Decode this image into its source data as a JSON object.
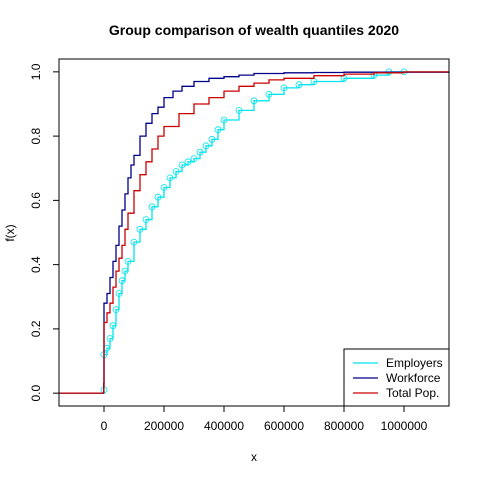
{
  "chart_data": {
    "type": "line",
    "title": "Group comparison of wealth quantiles 2020",
    "xlabel": "x",
    "ylabel": "f(x)",
    "xlim": [
      -150000,
      1150000
    ],
    "ylim": [
      -0.04,
      1.04
    ],
    "x_ticks": [
      0,
      200000,
      400000,
      600000,
      800000,
      1000000
    ],
    "x_tick_labels": [
      "0",
      "200000",
      "400000",
      "600000",
      "800000",
      "1000000"
    ],
    "y_ticks": [
      0.0,
      0.2,
      0.4,
      0.6,
      0.8,
      1.0
    ],
    "y_tick_labels": [
      "0.0",
      "0.2",
      "0.4",
      "0.6",
      "0.8",
      "1.0"
    ],
    "grid": false,
    "legend_position": "bottom-right",
    "series": [
      {
        "name": "Employers",
        "color": "#00e5ee",
        "marker": "circle",
        "x": [
          -150000,
          -1000,
          0,
          0,
          10000,
          20000,
          30000,
          40000,
          50000,
          60000,
          70000,
          80000,
          100000,
          120000,
          140000,
          160000,
          180000,
          200000,
          220000,
          240000,
          260000,
          280000,
          300000,
          320000,
          340000,
          360000,
          380000,
          400000,
          450000,
          500000,
          550000,
          600000,
          650000,
          700000,
          800000,
          900000,
          950000,
          1000000,
          1150000
        ],
        "y": [
          0.0,
          0.0,
          0.01,
          0.12,
          0.14,
          0.17,
          0.21,
          0.26,
          0.31,
          0.35,
          0.38,
          0.41,
          0.47,
          0.51,
          0.54,
          0.58,
          0.61,
          0.64,
          0.67,
          0.69,
          0.71,
          0.72,
          0.73,
          0.75,
          0.77,
          0.79,
          0.82,
          0.85,
          0.88,
          0.91,
          0.93,
          0.95,
          0.96,
          0.97,
          0.98,
          0.99,
          1.0,
          1.0,
          1.0
        ]
      },
      {
        "name": "Workforce",
        "color": "#00008b",
        "marker": "none",
        "x": [
          -150000,
          -10000,
          -1000,
          0,
          0,
          10000,
          20000,
          30000,
          40000,
          50000,
          60000,
          70000,
          80000,
          90000,
          100000,
          120000,
          140000,
          160000,
          180000,
          200000,
          230000,
          260000,
          300000,
          350000,
          400000,
          450000,
          500000,
          600000,
          700000,
          800000,
          1150000
        ],
        "y": [
          0.0,
          0.0,
          0.03,
          0.03,
          0.28,
          0.31,
          0.36,
          0.41,
          0.46,
          0.52,
          0.57,
          0.62,
          0.67,
          0.71,
          0.74,
          0.8,
          0.84,
          0.87,
          0.89,
          0.92,
          0.94,
          0.955,
          0.97,
          0.98,
          0.985,
          0.99,
          0.995,
          0.997,
          0.998,
          0.999,
          1.0
        ]
      },
      {
        "name": "Total Pop.",
        "color": "#cc0000",
        "marker": "none",
        "x": [
          -150000,
          -10000,
          -1000,
          0,
          0,
          10000,
          20000,
          30000,
          40000,
          50000,
          60000,
          70000,
          80000,
          100000,
          120000,
          140000,
          160000,
          180000,
          200000,
          250000,
          300000,
          350000,
          400000,
          450000,
          500000,
          550000,
          600000,
          700000,
          800000,
          900000,
          1000000,
          1150000
        ],
        "y": [
          0.0,
          0.0,
          0.02,
          0.02,
          0.22,
          0.25,
          0.28,
          0.33,
          0.38,
          0.42,
          0.46,
          0.51,
          0.56,
          0.63,
          0.68,
          0.72,
          0.76,
          0.8,
          0.83,
          0.87,
          0.9,
          0.92,
          0.94,
          0.955,
          0.965,
          0.975,
          0.98,
          0.988,
          0.993,
          0.997,
          1.0,
          1.0
        ]
      }
    ]
  }
}
